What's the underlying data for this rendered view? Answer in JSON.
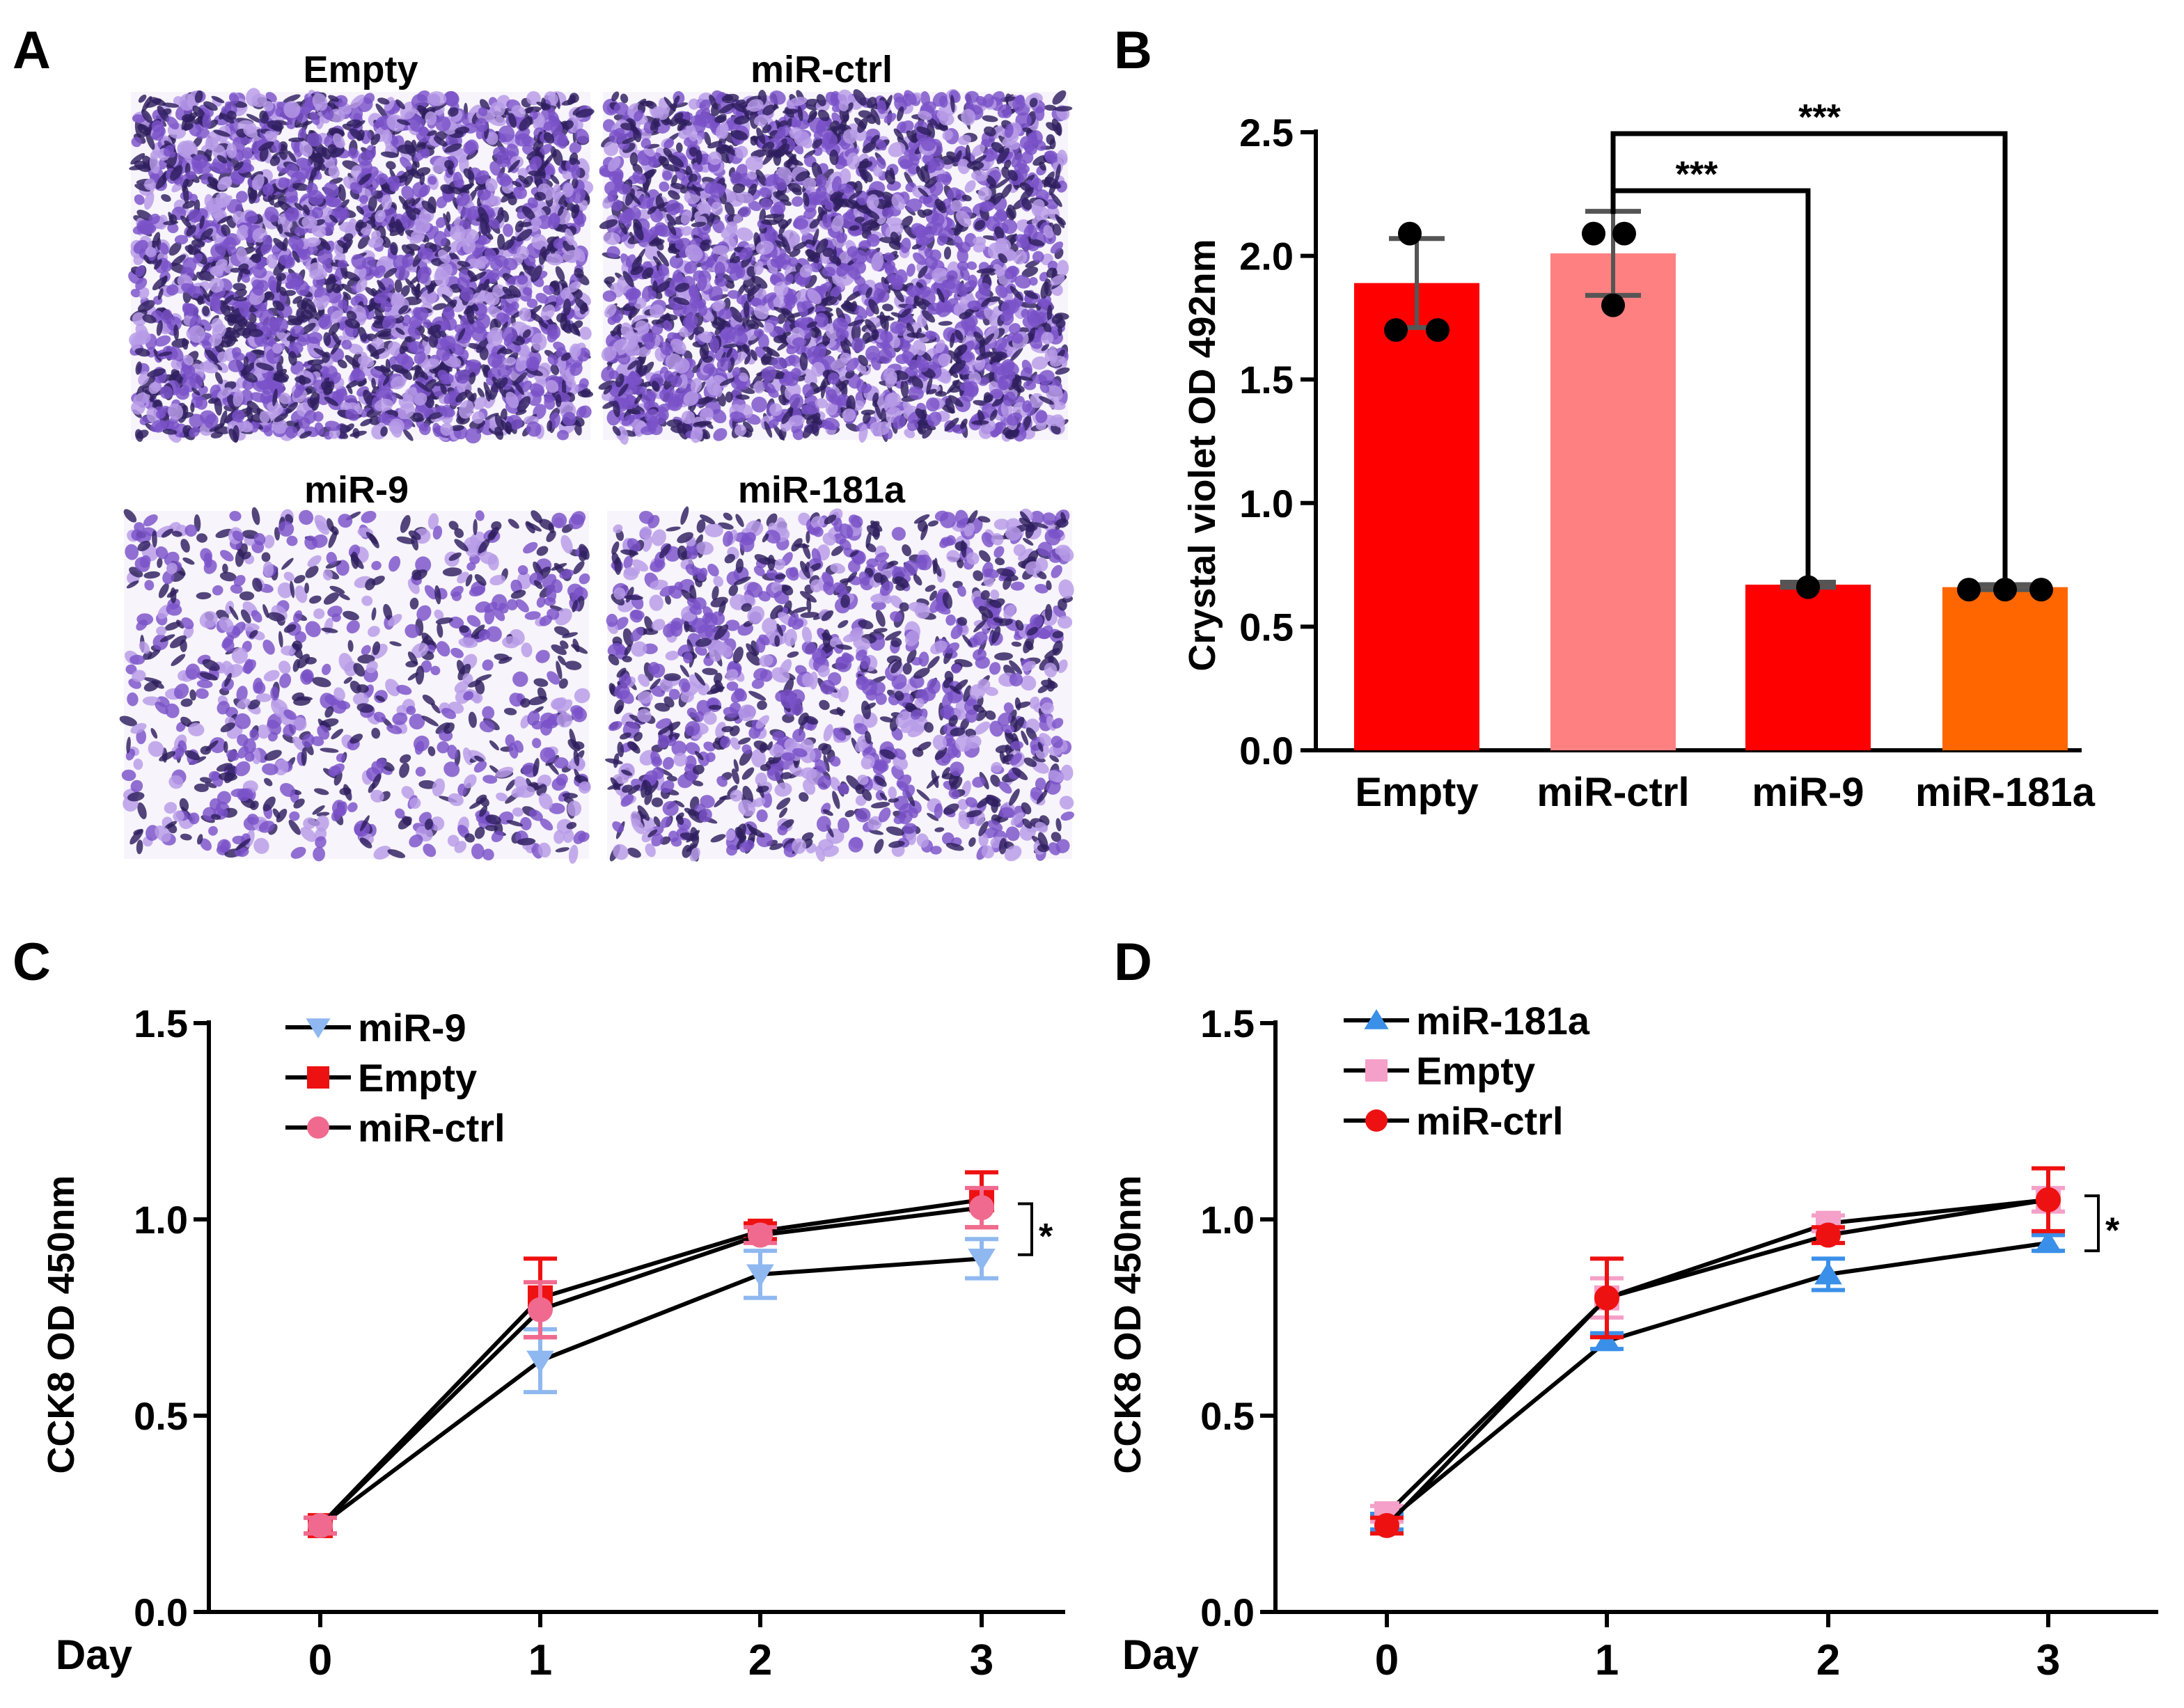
{
  "panels": {
    "A": {
      "letter": "A",
      "images": [
        {
          "label": "Empty",
          "density": "high"
        },
        {
          "label": "miR-ctrl",
          "density": "high"
        },
        {
          "label": "miR-9",
          "density": "low"
        },
        {
          "label": "miR-181a",
          "density": "medium"
        }
      ]
    },
    "B": {
      "letter": "B"
    },
    "C": {
      "letter": "C"
    },
    "D": {
      "letter": "D"
    }
  },
  "colors": {
    "bar_empty": "#ff0000",
    "bar_ctrl": "#ff8080",
    "bar_mir9": "#ff0000",
    "bar_mir181a": "#ff6600",
    "stain_dark": "#2e1f5e",
    "stain_purple": "#7a52c8",
    "stain_light": "#b79be6",
    "line": "#000000",
    "mir9": "#8fb8f0",
    "empty_red": "#ee1111",
    "ctrl_pink": "#f06a8f",
    "mir181a": "#3a8fe8",
    "empty_pink": "#f4a0c8",
    "ctrl_red": "#ee1111"
  },
  "chart_data": [
    {
      "type": "bar",
      "panel": "B",
      "ylabel": "Crystal violet OD 492nm",
      "ylim": [
        0,
        2.5
      ],
      "yticks": [
        "0.0",
        "0.5",
        "1.0",
        "1.5",
        "2.0",
        "2.5"
      ],
      "categories": [
        "Empty",
        "miR-ctrl",
        "miR-9",
        "miR-181a"
      ],
      "values": [
        1.89,
        2.01,
        0.67,
        0.66
      ],
      "sd": [
        0.18,
        0.17,
        0.01,
        0.01
      ],
      "points": [
        [
          2.09,
          1.7,
          1.7
        ],
        [
          2.09,
          2.09,
          1.8
        ],
        [
          0.66,
          0.66,
          0.66
        ],
        [
          0.65,
          0.65,
          0.65
        ]
      ],
      "significance": [
        {
          "from": "miR-ctrl",
          "to": "miR-9",
          "label": "***"
        },
        {
          "from": "miR-ctrl",
          "to": "miR-181a",
          "label": "***"
        }
      ]
    },
    {
      "type": "line",
      "panel": "C",
      "xlabel": "Day",
      "ylabel": "CCK8 OD 450nm",
      "x": [
        0,
        1,
        2,
        3
      ],
      "xticks": [
        "0",
        "1",
        "2",
        "3"
      ],
      "ylim": [
        0,
        1.5
      ],
      "yticks": [
        "0.0",
        "0.5",
        "1.0",
        "1.5"
      ],
      "series": [
        {
          "name": "miR-9",
          "marker": "triangle-down",
          "values": [
            0.22,
            0.64,
            0.86,
            0.9
          ],
          "err": [
            0.02,
            0.08,
            0.06,
            0.05
          ]
        },
        {
          "name": "Empty",
          "marker": "square",
          "values": [
            0.22,
            0.8,
            0.97,
            1.05
          ],
          "err": [
            0.02,
            0.1,
            0.02,
            0.07
          ]
        },
        {
          "name": "miR-ctrl",
          "marker": "circle",
          "values": [
            0.22,
            0.77,
            0.96,
            1.03
          ],
          "err": [
            0.02,
            0.07,
            0.02,
            0.05
          ]
        }
      ],
      "annotation": "*"
    },
    {
      "type": "line",
      "panel": "D",
      "xlabel": "Day",
      "ylabel": "CCK8 OD 450nm",
      "x": [
        0,
        1,
        2,
        3
      ],
      "xticks": [
        "0",
        "1",
        "2",
        "3"
      ],
      "ylim": [
        0,
        1.5
      ],
      "yticks": [
        "0.0",
        "0.5",
        "1.0",
        "1.5"
      ],
      "series": [
        {
          "name": "miR-181a",
          "marker": "triangle-up",
          "values": [
            0.23,
            0.69,
            0.86,
            0.94
          ],
          "err": [
            0.02,
            0.02,
            0.04,
            0.02
          ]
        },
        {
          "name": "Empty",
          "marker": "square",
          "values": [
            0.25,
            0.8,
            0.99,
            1.05
          ],
          "err": [
            0.02,
            0.05,
            0.02,
            0.03
          ]
        },
        {
          "name": "miR-ctrl",
          "marker": "circle",
          "values": [
            0.22,
            0.8,
            0.96,
            1.05
          ],
          "err": [
            0.02,
            0.1,
            0.02,
            0.08
          ]
        }
      ],
      "annotation": "*"
    }
  ]
}
